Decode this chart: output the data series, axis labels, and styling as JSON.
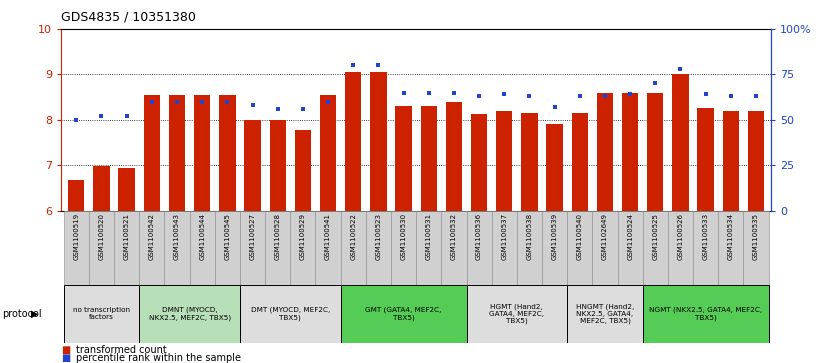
{
  "title": "GDS4835 / 10351380",
  "samples": [
    "GSM1100519",
    "GSM1100520",
    "GSM1100521",
    "GSM1100542",
    "GSM1100543",
    "GSM1100544",
    "GSM1100545",
    "GSM1100527",
    "GSM1100528",
    "GSM1100529",
    "GSM1100541",
    "GSM1100522",
    "GSM1100523",
    "GSM1100530",
    "GSM1100531",
    "GSM1100532",
    "GSM1100536",
    "GSM1100537",
    "GSM1100538",
    "GSM1100539",
    "GSM1100540",
    "GSM1102649",
    "GSM1100524",
    "GSM1100525",
    "GSM1100526",
    "GSM1100533",
    "GSM1100534",
    "GSM1100535"
  ],
  "bar_values": [
    6.68,
    6.98,
    6.93,
    8.55,
    8.55,
    8.55,
    8.55,
    8.0,
    8.0,
    7.78,
    8.55,
    9.05,
    9.05,
    8.3,
    8.3,
    8.4,
    8.12,
    8.2,
    8.15,
    7.9,
    8.15,
    8.6,
    8.6,
    8.6,
    9.0,
    8.25,
    8.2,
    8.2
  ],
  "percentile_values": [
    50,
    52,
    52,
    60,
    60,
    60,
    60,
    58,
    56,
    56,
    60,
    80,
    80,
    65,
    65,
    65,
    63,
    64,
    63,
    57,
    63,
    63,
    64,
    70,
    78,
    64,
    63,
    63
  ],
  "protocols": [
    {
      "label": "no transcription\nfactors",
      "start": 0,
      "end": 3,
      "color": "#dddddd"
    },
    {
      "label": "DMNT (MYOCD,\nNKX2.5, MEF2C, TBX5)",
      "start": 3,
      "end": 7,
      "color": "#b8e0b8"
    },
    {
      "label": "DMT (MYOCD, MEF2C,\nTBX5)",
      "start": 7,
      "end": 11,
      "color": "#dddddd"
    },
    {
      "label": "GMT (GATA4, MEF2C,\nTBX5)",
      "start": 11,
      "end": 16,
      "color": "#55cc55"
    },
    {
      "label": "HGMT (Hand2,\nGATA4, MEF2C,\nTBX5)",
      "start": 16,
      "end": 20,
      "color": "#dddddd"
    },
    {
      "label": "HNGMT (Hand2,\nNKX2.5, GATA4,\nMEF2C, TBX5)",
      "start": 20,
      "end": 23,
      "color": "#dddddd"
    },
    {
      "label": "NGMT (NKX2.5, GATA4, MEF2C,\nTBX5)",
      "start": 23,
      "end": 28,
      "color": "#55cc55"
    }
  ],
  "ylim": [
    6,
    10
  ],
  "y2lim": [
    0,
    100
  ],
  "yticks": [
    6,
    7,
    8,
    9,
    10
  ],
  "y2ticks": [
    0,
    25,
    50,
    75,
    100
  ],
  "y2ticklabels": [
    "0",
    "25",
    "50",
    "75",
    "100%"
  ],
  "bar_color": "#cc2200",
  "percentile_color": "#2244cc",
  "grid_color": "#000000",
  "bg_color": "#ffffff",
  "protocol_label": "protocol"
}
